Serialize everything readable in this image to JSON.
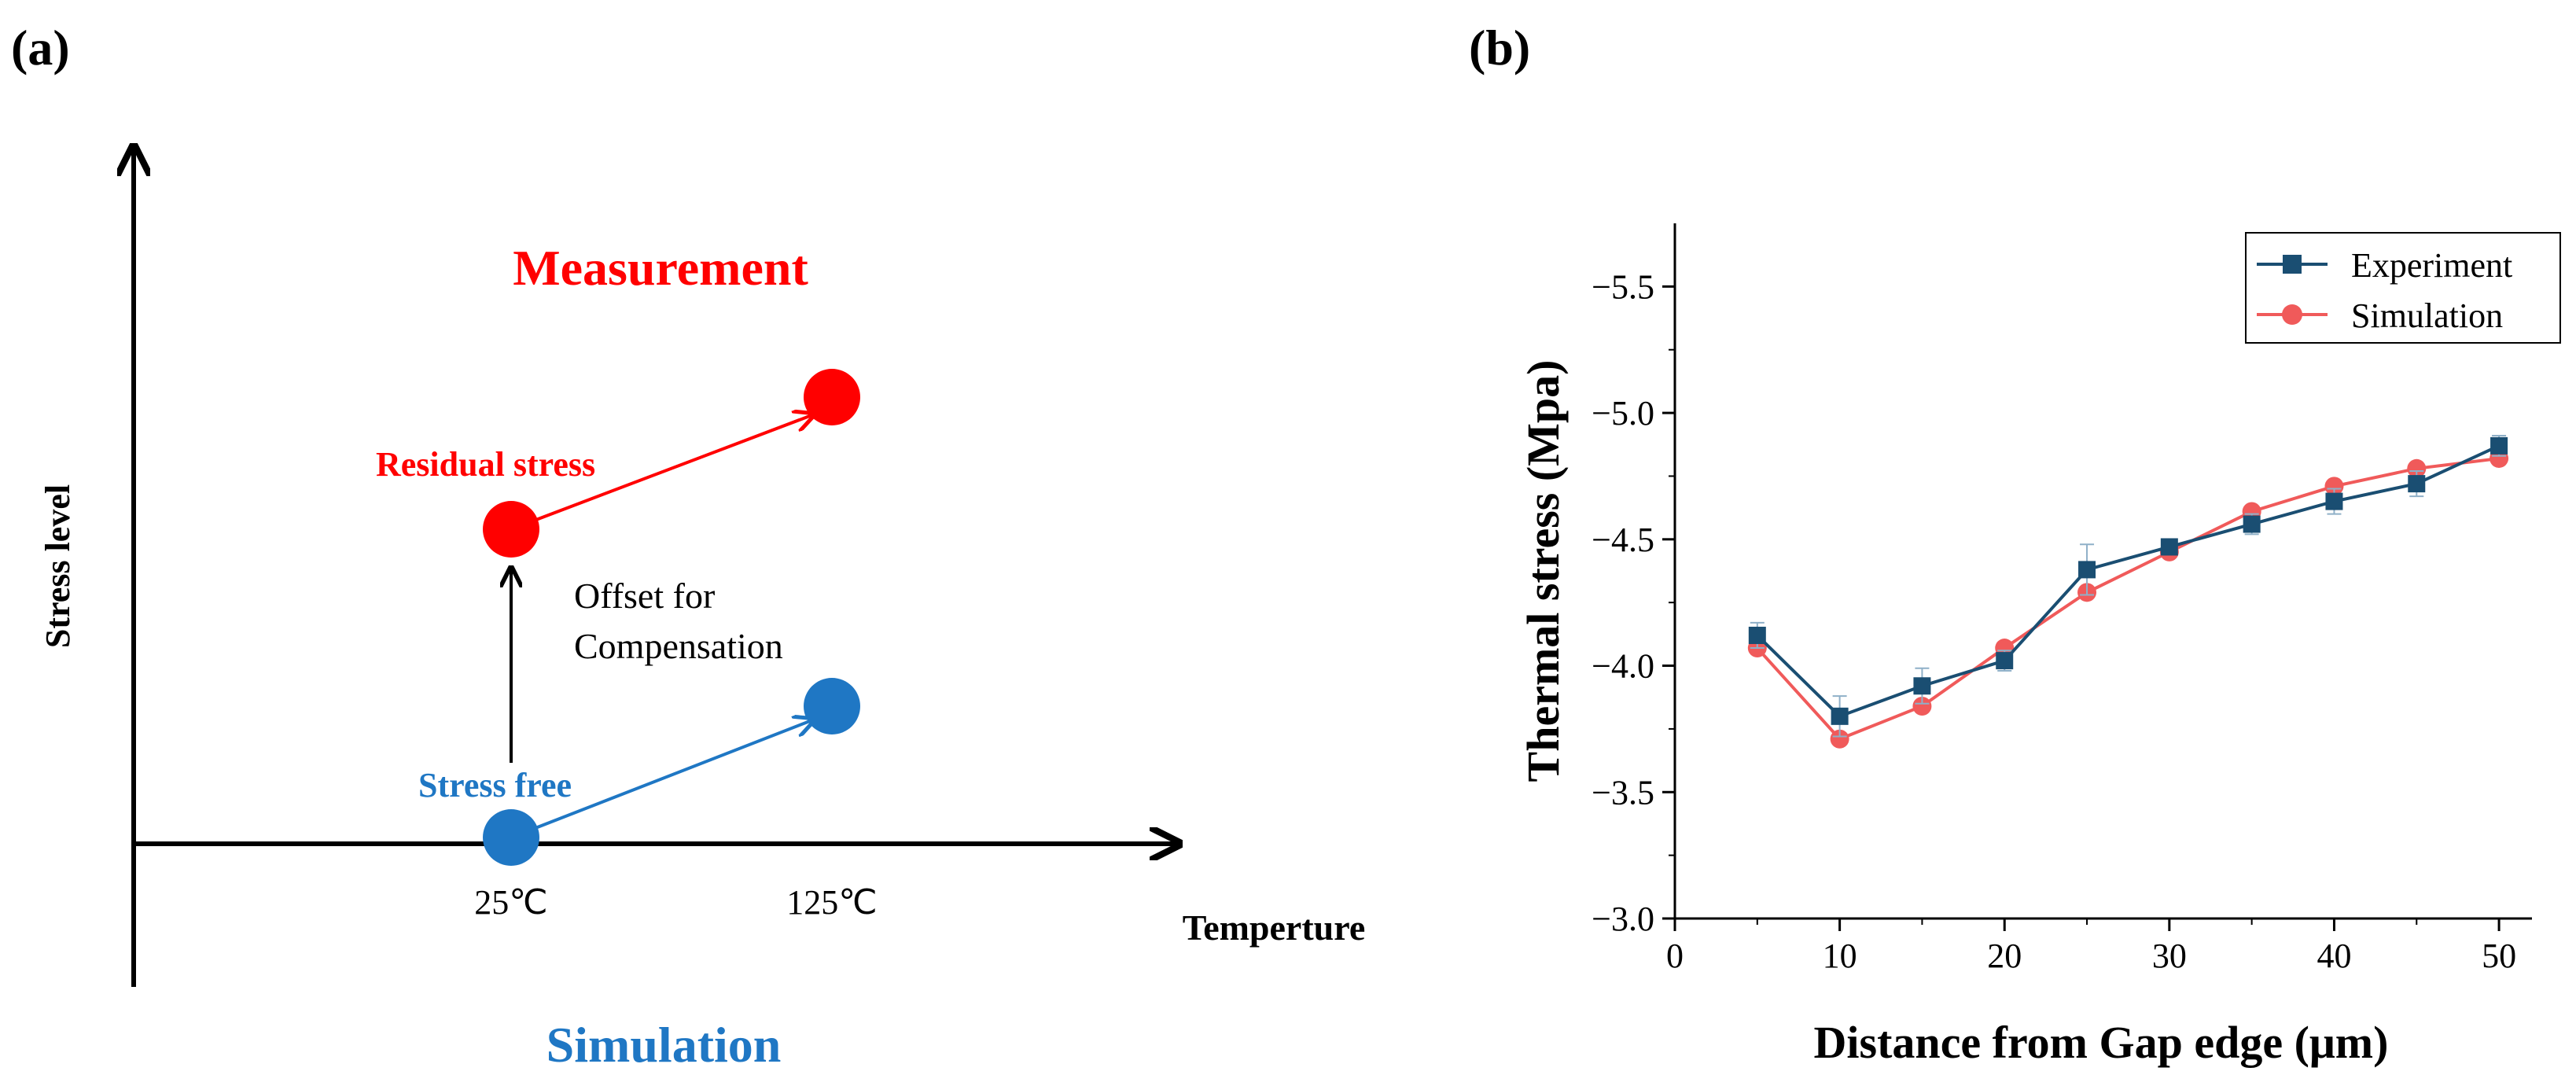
{
  "panel_a": {
    "label": "(a)",
    "y_axis_label": "Stress level",
    "x_axis_label": "Temperture",
    "title_top": "Measurement",
    "title_bottom": "Simulation",
    "residual_label": "Residual stress",
    "stress_free_label": "Stress free",
    "offset_label_line1": "Offset for",
    "offset_label_line2": "Compensation",
    "tick_25": "25℃",
    "tick_125": "125℃",
    "colors": {
      "measurement": "#ff0000",
      "simulation": "#1f77c4",
      "axis": "#000000"
    }
  },
  "panel_b": {
    "label": "(b)"
  },
  "chart_data": {
    "type": "line",
    "title": "",
    "xlabel": "Distance from Gap edge (μm)",
    "ylabel": "Thermal stress (Mpa)",
    "xlim": [
      0,
      52
    ],
    "ylim": [
      -3.0,
      -5.75
    ],
    "y_inverted": true,
    "xticks": [
      0,
      10,
      20,
      30,
      40,
      50
    ],
    "yticks": [
      -3.0,
      -3.5,
      -4.0,
      -4.5,
      -5.0,
      -5.5
    ],
    "ytick_labels": [
      "−3.0",
      "−3.5",
      "−4.0",
      "−4.5",
      "−5.0",
      "−5.5"
    ],
    "x": [
      5,
      10,
      15,
      20,
      25,
      30,
      35,
      40,
      45,
      50
    ],
    "series": [
      {
        "name": "Experiment",
        "color": "#1a4e72",
        "marker": "square",
        "values": [
          -4.12,
          -3.8,
          -3.92,
          -4.02,
          -4.38,
          -4.47,
          -4.56,
          -4.65,
          -4.72,
          -4.87
        ],
        "errors": [
          0.05,
          0.08,
          0.07,
          0.04,
          0.1,
          0.02,
          0.04,
          0.05,
          0.05,
          0.04
        ]
      },
      {
        "name": "Simulation",
        "color": "#f05a5a",
        "marker": "circle",
        "values": [
          -4.07,
          -3.71,
          -3.84,
          -4.07,
          -4.29,
          -4.45,
          -4.61,
          -4.71,
          -4.78,
          -4.82
        ]
      }
    ],
    "legend_position": "top-right"
  }
}
